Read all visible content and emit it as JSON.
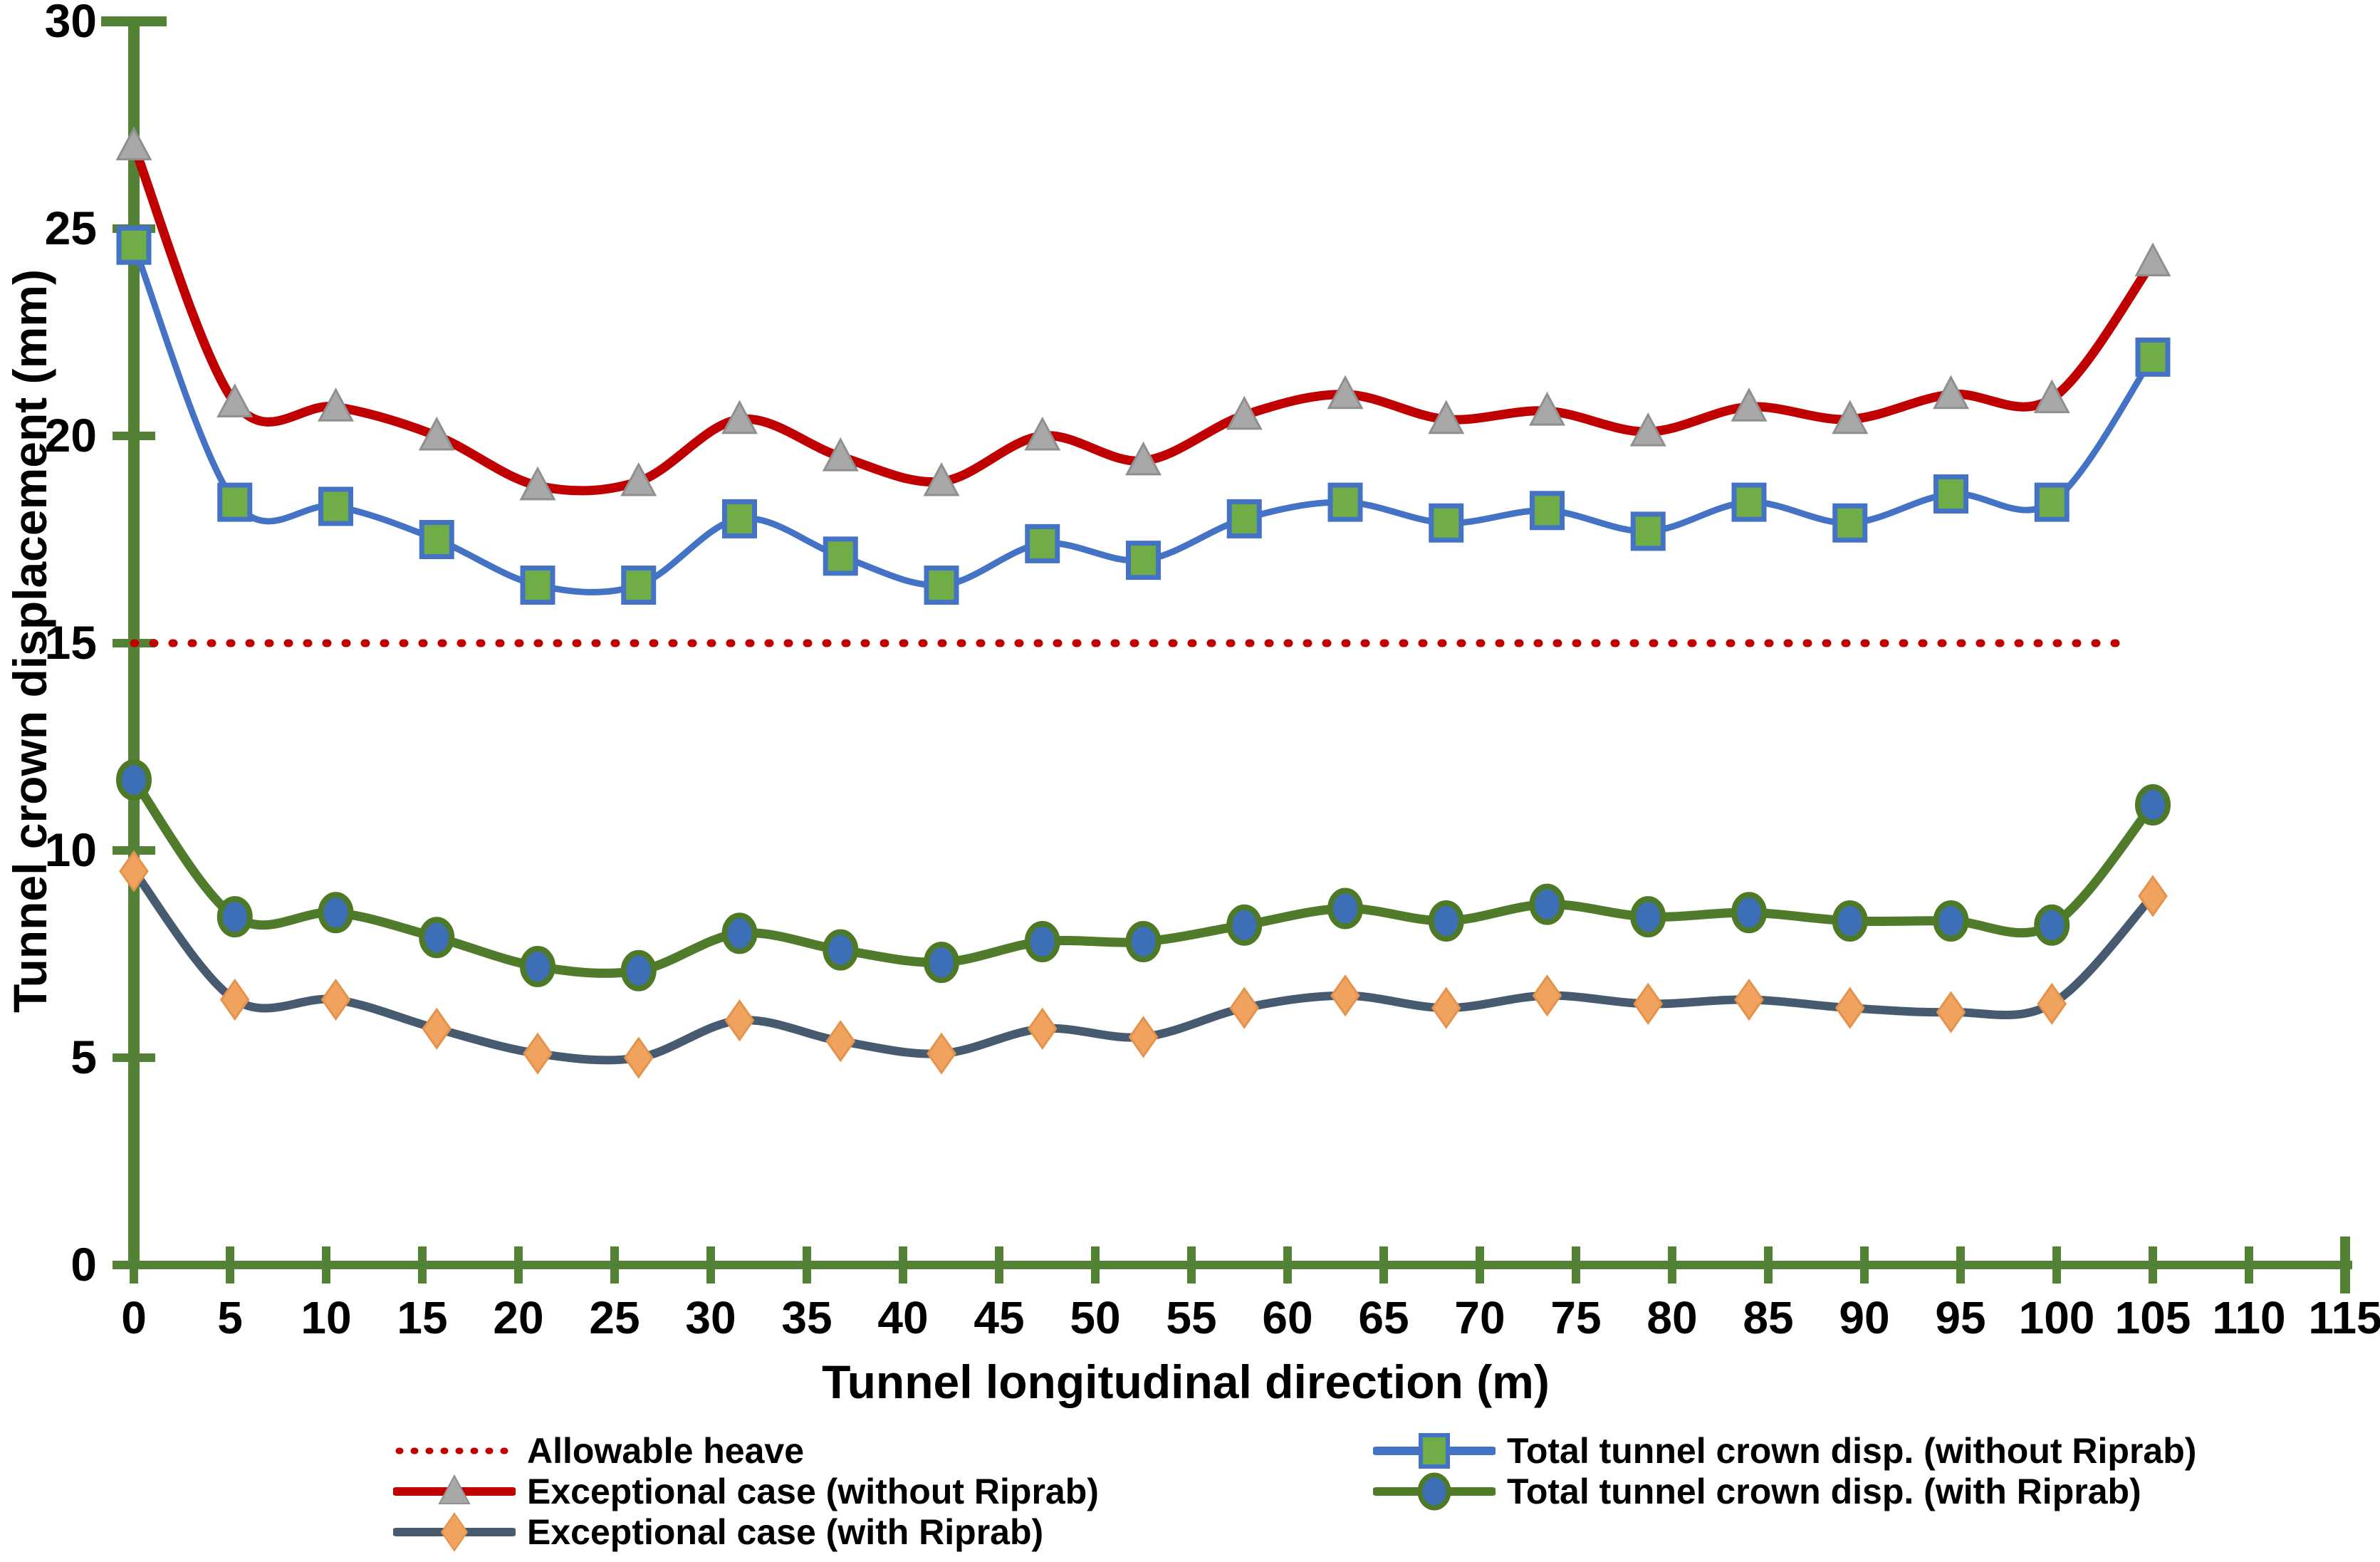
{
  "chart_data": {
    "type": "line",
    "title": "",
    "xlabel": "Tunnel longitudinal direction (m)",
    "ylabel": "Tunnel crown displacement (mm)",
    "xlim": [
      0,
      115
    ],
    "ylim": [
      0,
      30
    ],
    "x_ticks": [
      0,
      5,
      10,
      15,
      20,
      25,
      30,
      35,
      40,
      45,
      50,
      55,
      60,
      65,
      70,
      75,
      80,
      85,
      90,
      95,
      100,
      105,
      110,
      115
    ],
    "y_ticks": [
      0,
      5,
      10,
      15,
      20,
      25,
      30
    ],
    "grid": "off",
    "legend_position": "bottom",
    "axis_color": "#538135",
    "tick_label_color": "#000000",
    "x": [
      0,
      5.25,
      10.5,
      15.75,
      21,
      26.25,
      31.5,
      36.75,
      42,
      47.25,
      52.5,
      57.75,
      63,
      68.25,
      73.5,
      78.75,
      84,
      89.25,
      94.5,
      99.75,
      105
    ],
    "series": [
      {
        "name": "Allowable heave",
        "type": "constant",
        "value": 15,
        "x_range": [
          0,
          104
        ],
        "color": "#C00000",
        "line_style": "dotted",
        "marker": "none"
      },
      {
        "name": "Exceptional case (without Riprab)",
        "color": "#C00000",
        "line_style": "solid",
        "marker": "triangle",
        "marker_fill": "#A8A8A8",
        "marker_edge": "#8F8F8F",
        "values": [
          27.0,
          20.8,
          20.7,
          20.0,
          18.8,
          18.9,
          20.4,
          19.5,
          18.9,
          20.0,
          19.4,
          20.5,
          21.0,
          20.4,
          20.6,
          20.1,
          20.7,
          20.4,
          21.0,
          20.9,
          24.2
        ]
      },
      {
        "name": "Exceptional case (with Riprab)",
        "color": "#465A70",
        "line_style": "solid",
        "marker": "diamond",
        "marker_fill": "#F0A35F",
        "marker_edge": "#E5924B",
        "values": [
          9.5,
          6.4,
          6.4,
          5.7,
          5.1,
          5.0,
          5.9,
          5.4,
          5.1,
          5.7,
          5.5,
          6.2,
          6.5,
          6.2,
          6.5,
          6.3,
          6.4,
          6.2,
          6.1,
          6.3,
          8.9
        ]
      },
      {
        "name": "Total tunnel crown disp. (without Riprab)",
        "color": "#4472C4",
        "line_style": "solid",
        "marker": "square",
        "marker_fill": "#70AD47",
        "marker_edge": "#4472C4",
        "values": [
          24.6,
          18.4,
          18.3,
          17.5,
          16.4,
          16.4,
          18.0,
          17.1,
          16.4,
          17.4,
          17.0,
          18.0,
          18.4,
          17.9,
          18.2,
          17.7,
          18.4,
          17.9,
          18.6,
          18.4,
          21.9
        ]
      },
      {
        "name": "Total tunnel crown disp. (with Riprab)",
        "color": "#507B2B",
        "line_style": "solid",
        "marker": "circle",
        "marker_fill": "#3C6FB6",
        "marker_edge": "#4E7A27",
        "values": [
          11.7,
          8.4,
          8.5,
          7.9,
          7.2,
          7.1,
          8.0,
          7.6,
          7.3,
          7.8,
          7.8,
          8.2,
          8.6,
          8.3,
          8.7,
          8.4,
          8.5,
          8.3,
          8.3,
          8.2,
          11.1
        ]
      }
    ]
  }
}
